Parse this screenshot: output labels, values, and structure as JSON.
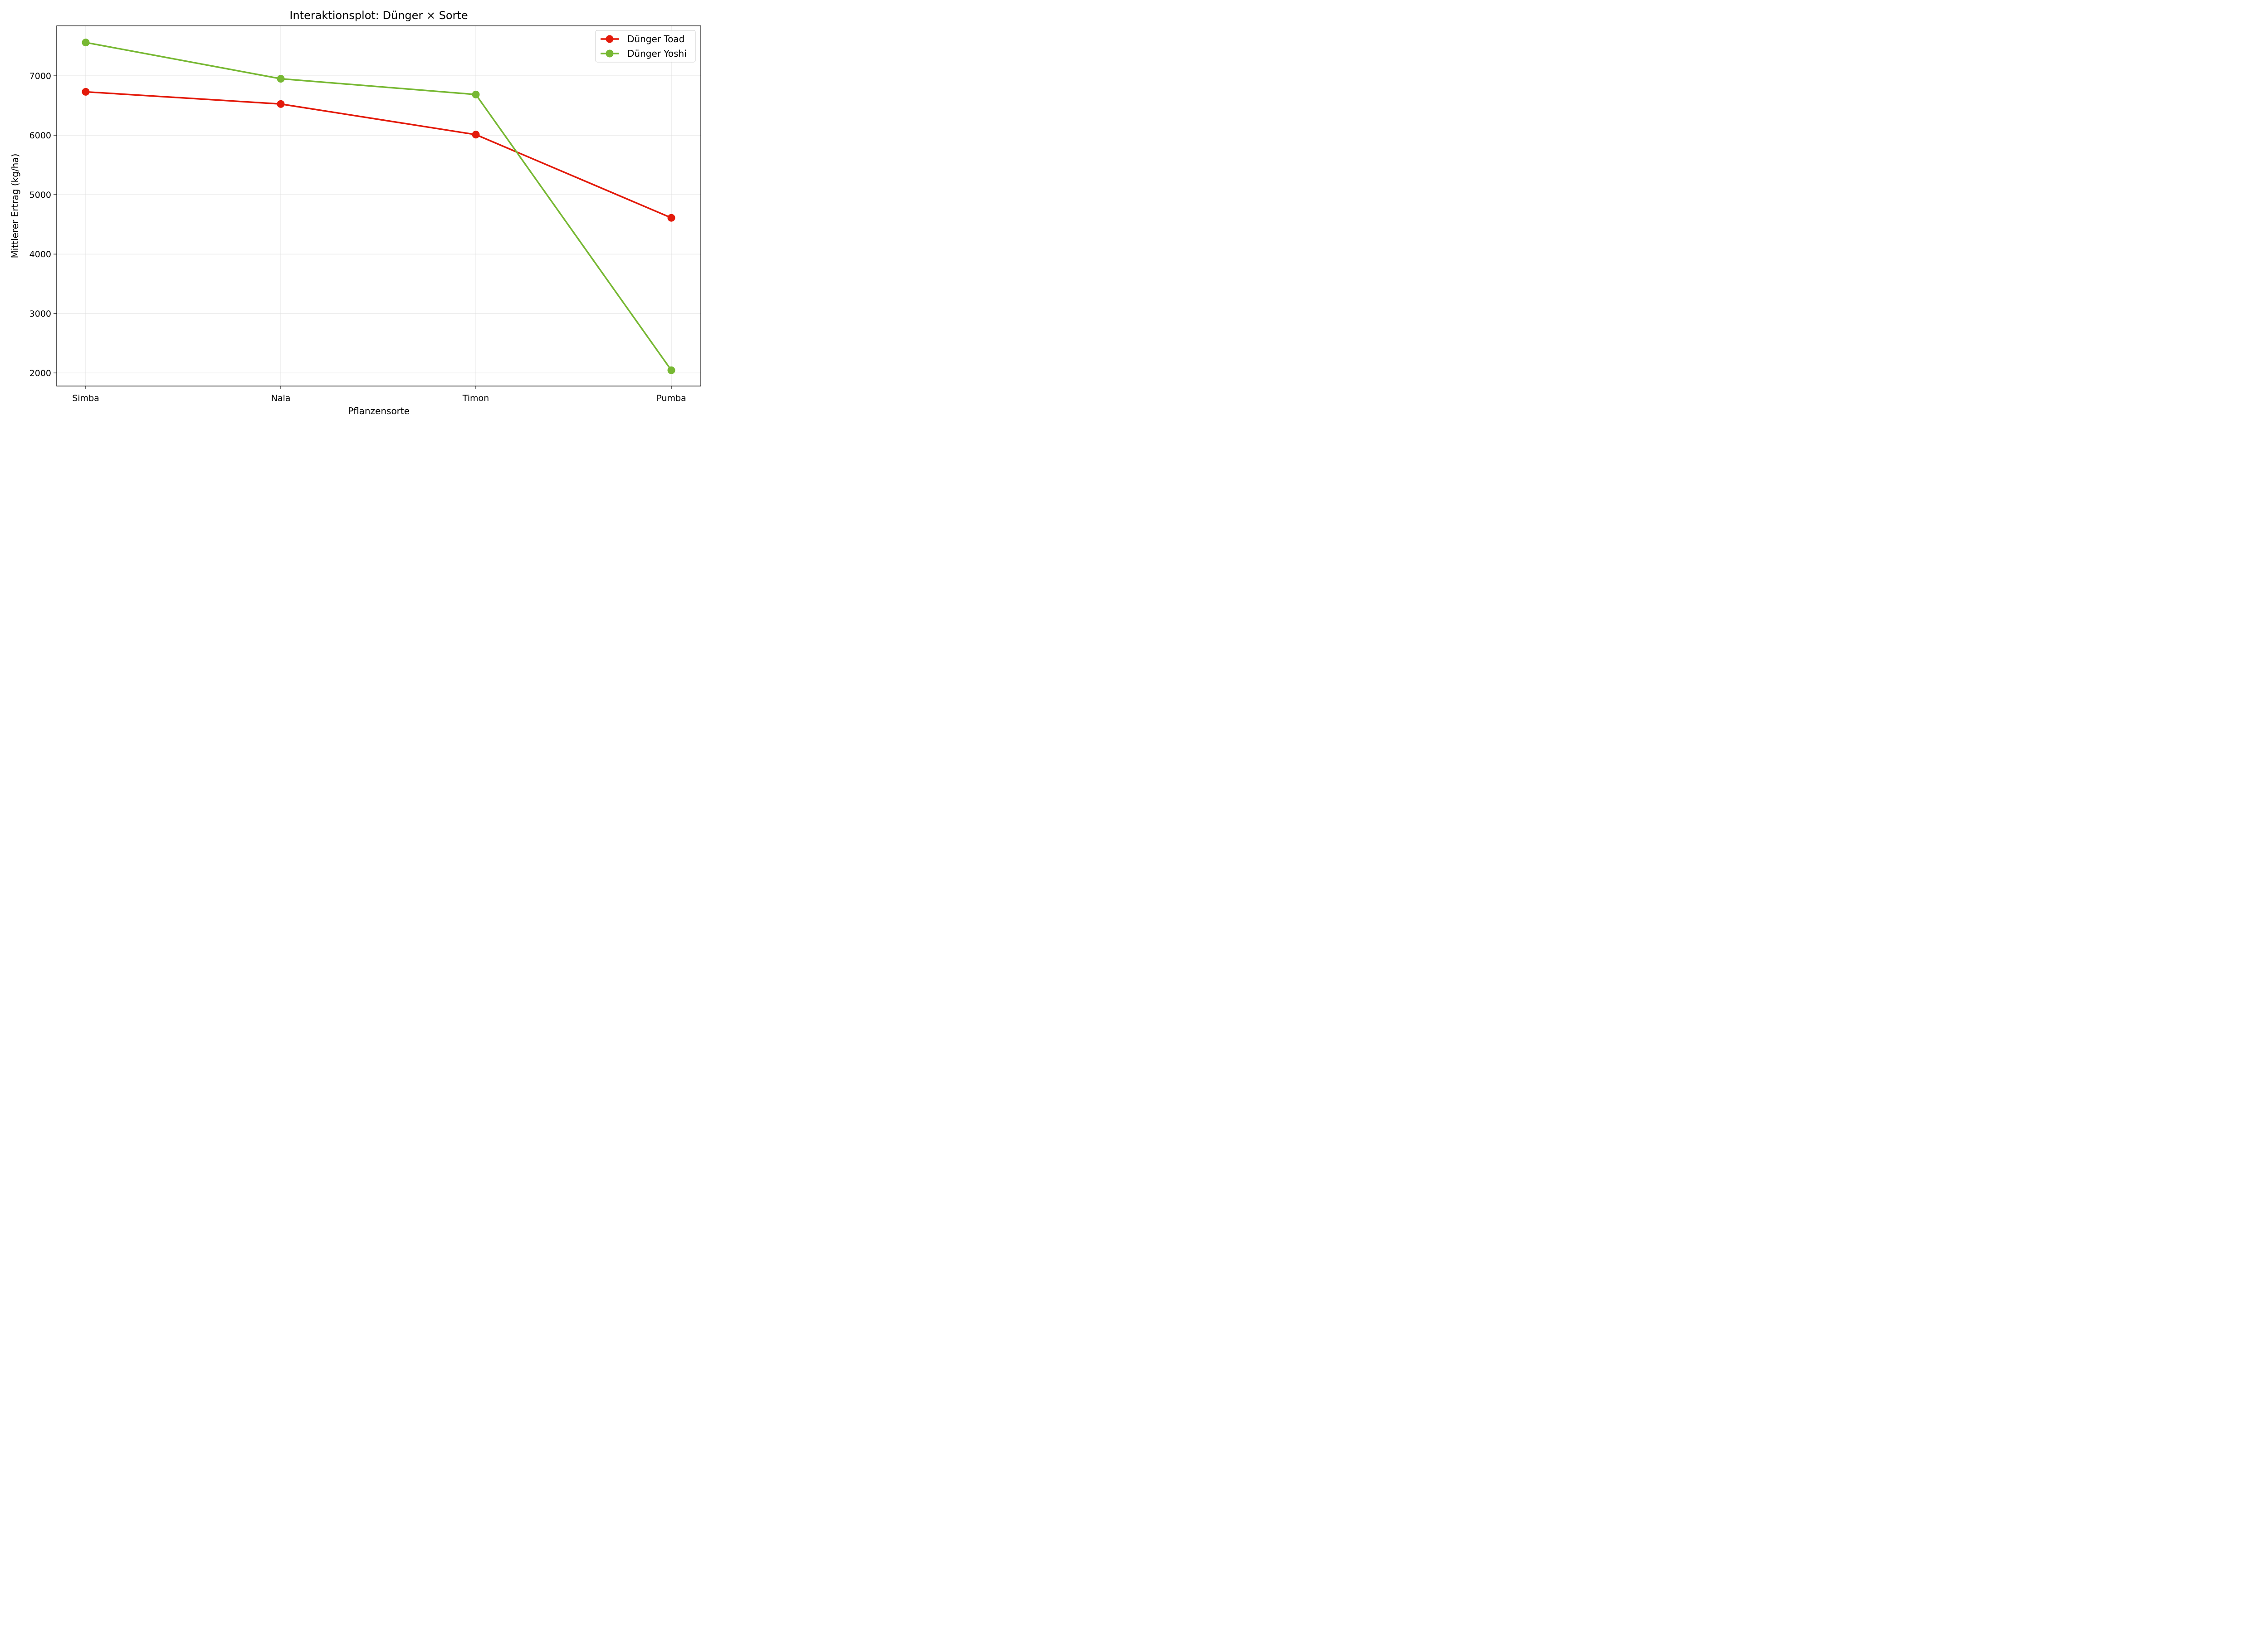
{
  "chart_data": {
    "type": "line",
    "title": "Interaktionsplot: Dünger × Sorte",
    "xlabel": "Pflanzensorte",
    "ylabel": "Mittlerer Ertrag (kg/ha)",
    "categories": [
      "Simba",
      "Nala",
      "Timon",
      "Pumba"
    ],
    "yticks": [
      2000,
      3000,
      4000,
      5000,
      6000,
      7000
    ],
    "ylim": [
      1780,
      7840
    ],
    "grid": true,
    "legend_position": "top-right",
    "series": [
      {
        "name": "Dünger Toad",
        "color": "#e31a0b",
        "values": [
          6730,
          6525,
          6010,
          4610
        ]
      },
      {
        "name": "Dünger Yoshi",
        "color": "#77b833",
        "values": [
          7560,
          6950,
          6685,
          2045
        ]
      }
    ]
  }
}
